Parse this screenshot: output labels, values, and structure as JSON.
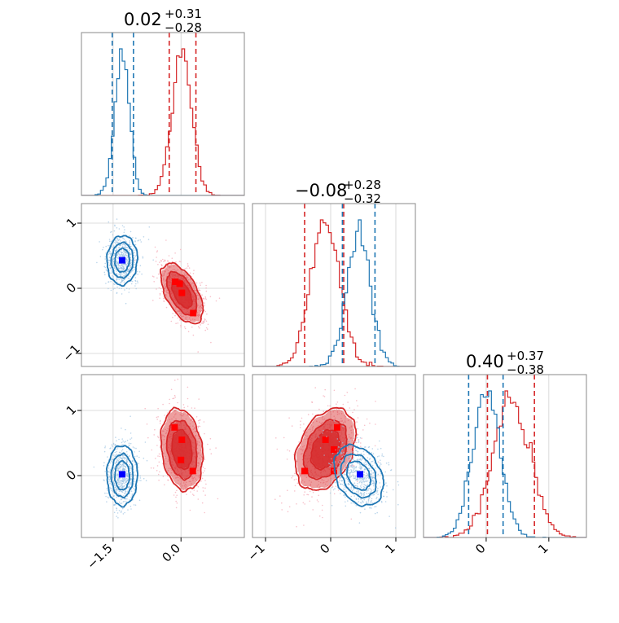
{
  "chart_data": {
    "type": "corner",
    "parameters": [
      {
        "title": "0.02",
        "err_plus": "+0.31",
        "err_minus": "−0.28",
        "range": [
          -2.2,
          1.4
        ]
      },
      {
        "title": "−0.08",
        "err_plus": "+0.28",
        "err_minus": "−0.32",
        "range": [
          -1.2,
          1.3
        ]
      },
      {
        "title": "0.40",
        "err_plus": "+0.37",
        "err_minus": "−0.38",
        "range": [
          -1.0,
          1.6
        ]
      }
    ],
    "x_ticks": [
      [
        {
          "value": -1.5,
          "label": "−1.5"
        },
        {
          "value": 0.0,
          "label": "0.0"
        }
      ],
      [
        {
          "value": -1,
          "label": "−1"
        },
        {
          "value": 0,
          "label": "0"
        },
        {
          "value": 1,
          "label": "1"
        }
      ],
      [
        {
          "value": 0,
          "label": "0"
        },
        {
          "value": 1,
          "label": "1"
        }
      ]
    ],
    "y_ticks": [
      [
        {
          "value": 1,
          "label": "1"
        },
        {
          "value": 0,
          "label": "0"
        },
        {
          "value": -1,
          "label": "−1"
        }
      ],
      [
        {
          "value": 1,
          "label": "1"
        },
        {
          "value": 0,
          "label": "0"
        }
      ]
    ],
    "y_ranges": [
      [
        -1.2,
        1.3
      ],
      [
        -0.95,
        1.55
      ]
    ],
    "grid": true,
    "series": [
      {
        "color": "#d62728",
        "fill": "#d62728",
        "mean": [
          0.02,
          -0.08,
          0.4
        ],
        "quantiles": [
          [
            -0.26,
            0.33
          ],
          [
            -0.4,
            0.2
          ],
          [
            0.02,
            0.77
          ]
        ],
        "sigma": [
          0.22,
          0.22,
          0.3
        ],
        "cov_rho": {
          "p0p1": -0.55,
          "p0p2": -0.2,
          "p1p2": 0.35
        },
        "markers": {
          "p0p1": [
            [
              -0.13,
              0.1
            ],
            [
              -0.03,
              0.07
            ],
            [
              0.02,
              -0.07
            ],
            [
              0.27,
              -0.38
            ]
          ],
          "p0p2": [
            [
              -0.14,
              0.74
            ],
            [
              0.02,
              0.55
            ],
            [
              0.0,
              0.24
            ],
            [
              0.26,
              0.07
            ]
          ],
          "p1p2": [
            [
              0.1,
              0.74
            ],
            [
              -0.08,
              0.55
            ],
            [
              0.05,
              0.4
            ],
            [
              -0.4,
              0.07
            ],
            [
              0.05,
              0.07
            ]
          ]
        }
      },
      {
        "color": "#1f77b4",
        "fill": "none",
        "mean": [
          -1.3,
          0.43,
          0.0
        ],
        "quantiles": [
          [
            -1.52,
            -1.05
          ],
          [
            0.18,
            0.68
          ],
          [
            -0.28,
            0.27
          ]
        ],
        "sigma": [
          0.16,
          0.18,
          0.22
        ],
        "cov_rho": {
          "p0p1": 0.05,
          "p0p2": 0.0,
          "p1p2": -0.3
        },
        "markers": {
          "p0p1": [
            [
              -1.3,
              0.43
            ]
          ],
          "p0p2": [
            [
              -1.3,
              0.02
            ]
          ],
          "p1p2": [
            [
              0.45,
              0.02
            ]
          ]
        }
      }
    ]
  }
}
